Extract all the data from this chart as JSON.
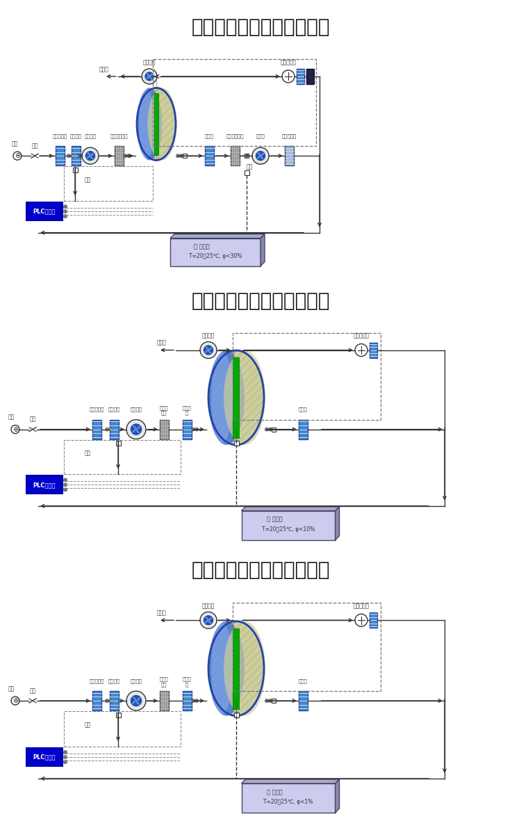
{
  "titles": [
    "可定制组合式系统原理图一",
    "可定制组合式系统原理图二",
    "可定制组合式系统原理图三"
  ],
  "bg_color": "#ffffff",
  "room_labels": [
    [
      "工作间",
      "T=20～25℃, φ<30%"
    ],
    [
      "工作间",
      "T=20～25℃, φ<10%"
    ],
    [
      "工作间",
      "T=20～25℃, φ<1%"
    ]
  ],
  "title_fontsize": 20,
  "line_color": "#333333",
  "blue_color": "#2255aa",
  "plc_bg": "#0000cc",
  "panel_bottoms": [
    793,
    400,
    7
  ],
  "panel_tops": [
    1174,
    780,
    393
  ]
}
